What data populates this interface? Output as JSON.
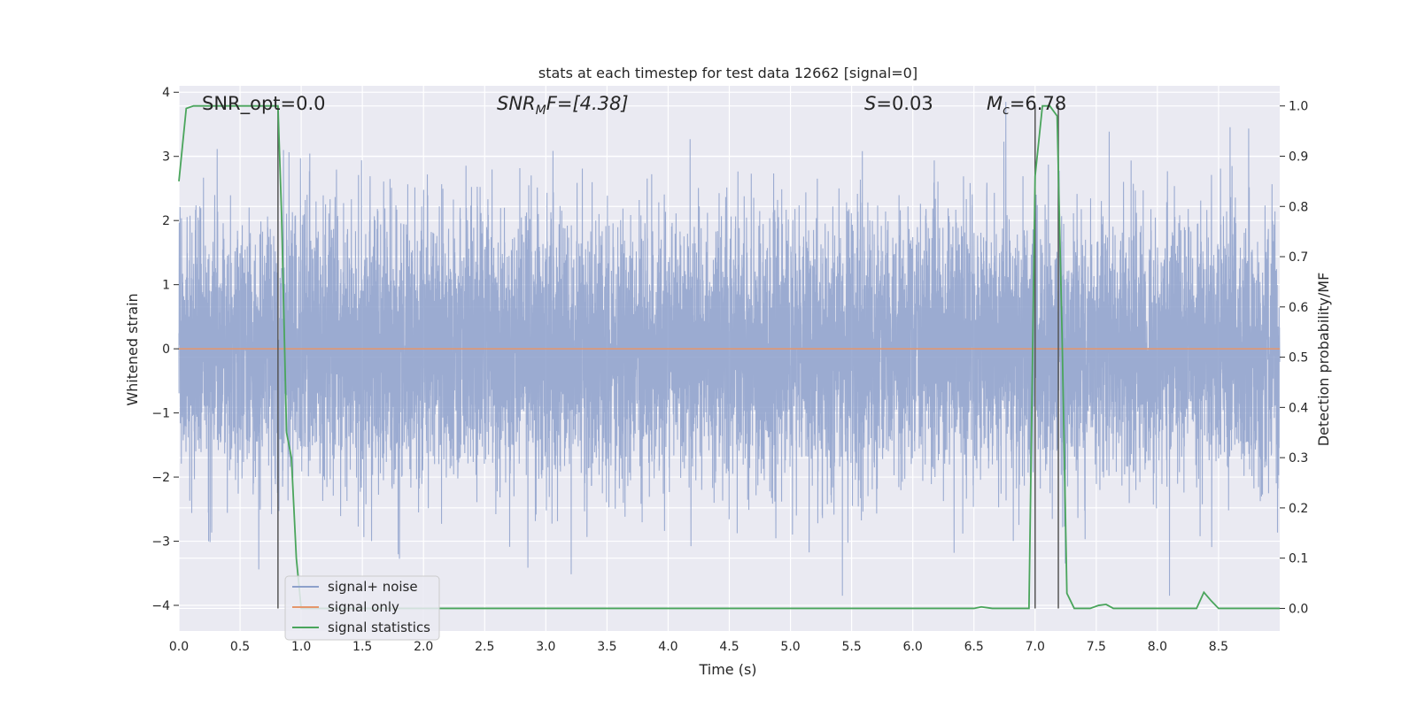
{
  "chart_data": {
    "type": "line",
    "title": "stats at each timestep for test data 12662 [signal=0]",
    "xlabel": "Time (s)",
    "ylabel": "Whitened strain",
    "y2label": "Detection probability/MF",
    "xlim": [
      0.0,
      9.0
    ],
    "ylim": [
      -4.4,
      4.1
    ],
    "y2lim": [
      -0.045,
      1.04
    ],
    "x_ticks": [
      "0.0",
      "0.5",
      "1.0",
      "1.5",
      "2.0",
      "2.5",
      "3.0",
      "3.5",
      "4.0",
      "4.5",
      "5.0",
      "5.5",
      "6.0",
      "6.5",
      "7.0",
      "7.5",
      "8.0",
      "8.5"
    ],
    "y_ticks": [
      "4",
      "3",
      "2",
      "1",
      "0",
      "−1",
      "−2",
      "−3",
      "−4"
    ],
    "y2_ticks": [
      "1.0",
      "0.9",
      "0.8",
      "0.7",
      "0.6",
      "0.5",
      "0.4",
      "0.3",
      "0.2",
      "0.1",
      "0.0"
    ],
    "grid": true,
    "legend_position": "lower-left",
    "annotations": {
      "snr_opt": "SNR_opt=0.0",
      "snr_mf_base": "SNR",
      "snr_mf_sub": "M",
      "snr_mf_rest": "F=[4.38]",
      "s_base": "S",
      "s_rest": "=0.03",
      "mc_base": "M",
      "mc_sub": "c",
      "mc_rest": "=6.78"
    },
    "series": [
      {
        "name": "signal+ noise",
        "color": "#8da0cb",
        "description_values": "white noise, sample std ~1, range approx -3.8 to 3.8",
        "sample_rate": 2048,
        "approx_std": 1.0
      },
      {
        "name": "signal only",
        "color": "#e5966b",
        "values": [
          [
            0.0,
            0.0
          ],
          [
            9.0,
            0.0
          ]
        ]
      },
      {
        "name": "signal statistics",
        "color": "#4aa55c",
        "axis": "right",
        "points": [
          [
            0.0,
            0.85
          ],
          [
            0.06,
            0.995
          ],
          [
            0.12,
            1.0
          ],
          [
            0.2,
            1.0
          ],
          [
            0.4,
            1.0
          ],
          [
            0.6,
            1.0
          ],
          [
            0.78,
            1.0
          ],
          [
            0.81,
            1.0
          ],
          [
            0.84,
            0.78
          ],
          [
            0.88,
            0.35
          ],
          [
            0.92,
            0.3
          ],
          [
            0.96,
            0.1
          ],
          [
            1.0,
            0.0
          ],
          [
            1.5,
            0.0
          ],
          [
            2.0,
            0.0
          ],
          [
            3.0,
            0.0
          ],
          [
            4.0,
            0.0
          ],
          [
            5.0,
            0.0
          ],
          [
            6.0,
            0.0
          ],
          [
            6.5,
            0.0
          ],
          [
            6.56,
            0.003
          ],
          [
            6.65,
            0.0
          ],
          [
            6.95,
            0.0
          ],
          [
            7.0,
            0.86
          ],
          [
            7.06,
            1.0
          ],
          [
            7.12,
            1.0
          ],
          [
            7.18,
            0.98
          ],
          [
            7.22,
            0.55
          ],
          [
            7.26,
            0.03
          ],
          [
            7.32,
            0.0
          ],
          [
            7.45,
            0.0
          ],
          [
            7.52,
            0.006
          ],
          [
            7.58,
            0.008
          ],
          [
            7.64,
            0.0
          ],
          [
            8.0,
            0.0
          ],
          [
            8.32,
            0.0
          ],
          [
            8.38,
            0.032
          ],
          [
            8.44,
            0.015
          ],
          [
            8.5,
            0.0
          ],
          [
            8.75,
            0.0
          ],
          [
            9.0,
            0.0
          ]
        ]
      }
    ],
    "vertical_markers": [
      0.81,
      7.0,
      7.19
    ]
  }
}
